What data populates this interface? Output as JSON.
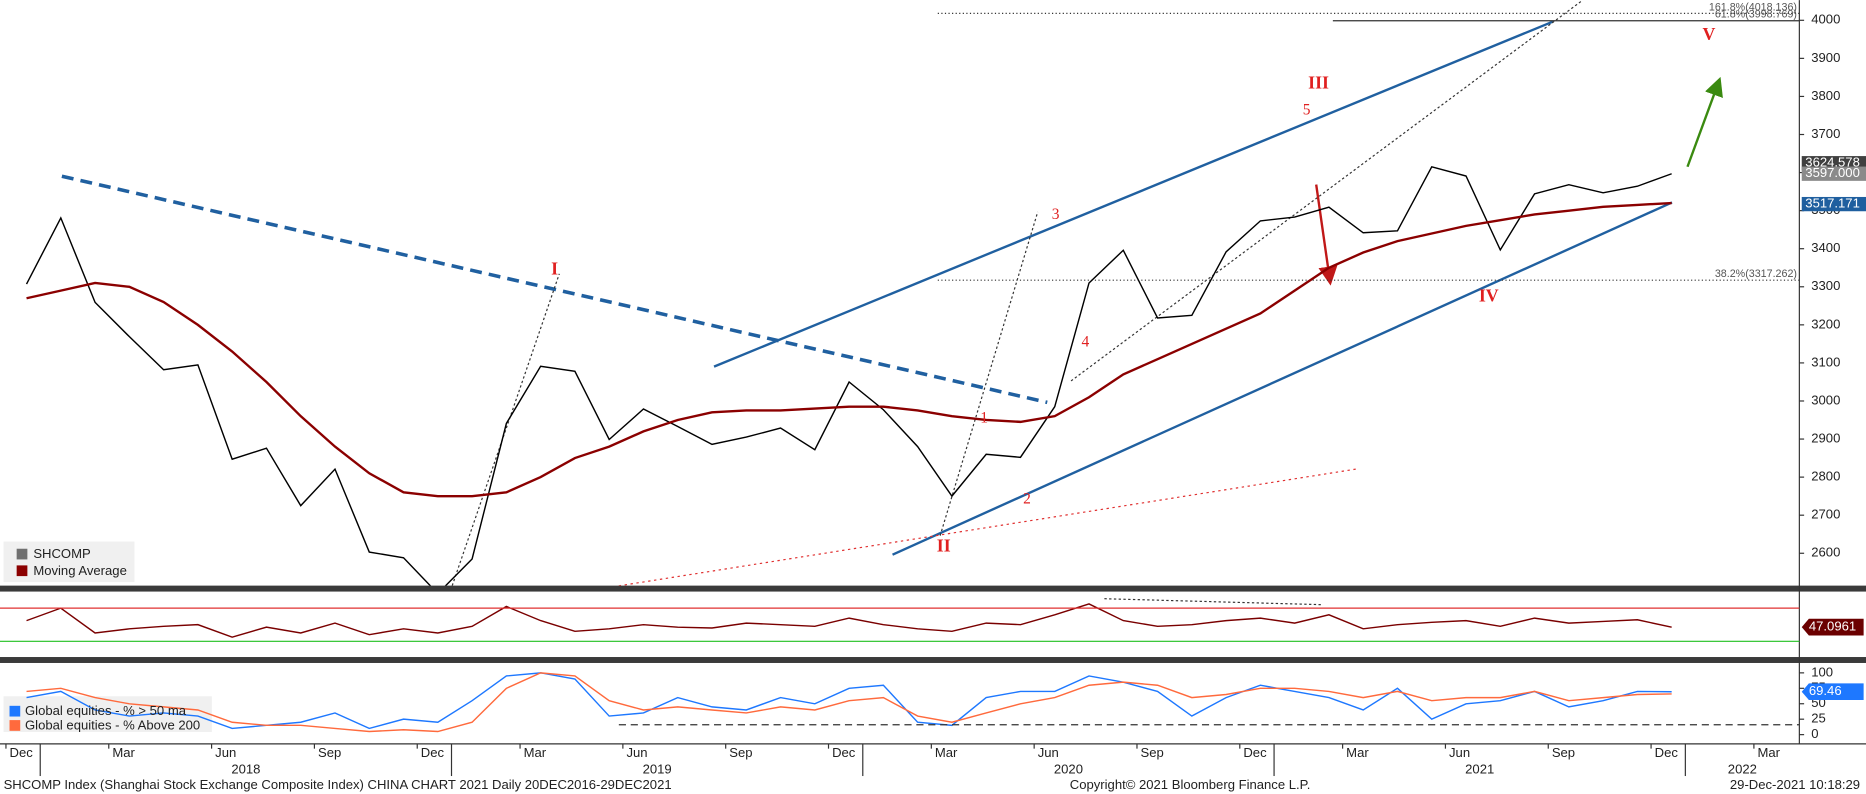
{
  "chart_data": [
    {
      "type": "line",
      "x": [
        "2017-12",
        "2018-01",
        "2018-02",
        "2018-03",
        "2018-04",
        "2018-05",
        "2018-06",
        "2018-07",
        "2018-08",
        "2018-09",
        "2018-10",
        "2018-11",
        "2018-12",
        "2019-01",
        "2019-02",
        "2019-03",
        "2019-04",
        "2019-05",
        "2019-06",
        "2019-07",
        "2019-08",
        "2019-09",
        "2019-10",
        "2019-11",
        "2019-12",
        "2020-01",
        "2020-02",
        "2020-03",
        "2020-04",
        "2020-05",
        "2020-06",
        "2020-07",
        "2020-08",
        "2020-09",
        "2020-10",
        "2020-11",
        "2020-12",
        "2021-01",
        "2021-02",
        "2021-03",
        "2021-04",
        "2021-05",
        "2021-06",
        "2021-07",
        "2021-08",
        "2021-09",
        "2021-10",
        "2021-11",
        "2021-12"
      ],
      "xticks": [
        {
          "value": "2017-12",
          "label": "Dec"
        },
        {
          "value": "2018-03",
          "label": "Mar"
        },
        {
          "value": "2018-06",
          "label": "Jun"
        },
        {
          "value": "2018-09",
          "label": "Sep"
        },
        {
          "value": "2018-12",
          "label": "Dec"
        },
        {
          "value": "2019-03",
          "label": "Mar"
        },
        {
          "value": "2019-06",
          "label": "Jun"
        },
        {
          "value": "2019-09",
          "label": "Sep"
        },
        {
          "value": "2019-12",
          "label": "Dec"
        },
        {
          "value": "2020-03",
          "label": "Mar"
        },
        {
          "value": "2020-06",
          "label": "Jun"
        },
        {
          "value": "2020-09",
          "label": "Sep"
        },
        {
          "value": "2020-12",
          "label": "Dec"
        },
        {
          "value": "2021-03",
          "label": "Mar"
        },
        {
          "value": "2021-06",
          "label": "Jun"
        },
        {
          "value": "2021-09",
          "label": "Sep"
        },
        {
          "value": "2021-12",
          "label": "Dec"
        },
        {
          "value": "2022-03",
          "label": "Mar"
        }
      ],
      "year_labels": [
        "2018",
        "2019",
        "2020",
        "2021",
        "2022"
      ],
      "ylim": [
        2515,
        4053
      ],
      "yticks": [
        2600,
        2700,
        2800,
        2900,
        3000,
        3100,
        3200,
        3300,
        3400,
        3500,
        3600,
        3700,
        3800,
        3900,
        4000
      ],
      "series": [
        {
          "name": "SHCOMP",
          "color": "#000000",
          "values": [
            3307,
            3481,
            3259,
            3169,
            3082,
            3095,
            2847,
            2876,
            2725,
            2821,
            2603,
            2588,
            2494,
            2585,
            2941,
            3091,
            3078,
            2899,
            2979,
            2933,
            2886,
            2905,
            2929,
            2872,
            3050,
            2977,
            2880,
            2750,
            2860,
            2852,
            2985,
            3310,
            3396,
            3218,
            3225,
            3392,
            3473,
            3483,
            3509,
            3442,
            3447,
            3615,
            3591,
            3397,
            3544,
            3568,
            3547,
            3564,
            3597
          ]
        },
        {
          "name": "Moving Average",
          "color": "#8b0000",
          "values": [
            3270,
            3290,
            3310,
            3300,
            3260,
            3200,
            3130,
            3050,
            2960,
            2880,
            2810,
            2760,
            2750,
            2750,
            2760,
            2800,
            2850,
            2880,
            2920,
            2950,
            2970,
            2975,
            2975,
            2980,
            2985,
            2985,
            2975,
            2960,
            2950,
            2945,
            2960,
            3010,
            3070,
            3110,
            3150,
            3190,
            3230,
            3290,
            3350,
            3390,
            3420,
            3440,
            3460,
            3475,
            3490,
            3500,
            3510,
            3515,
            3520
          ]
        }
      ],
      "last_value_labels": [
        {
          "value": 3624.578,
          "label": "3624.578",
          "color": "#404040"
        },
        {
          "value": 3597,
          "label": "3597.000",
          "color": "#8a8a8a"
        },
        {
          "value": 3517.171,
          "label": "3517.171",
          "color": "#1f5f9f"
        }
      ],
      "fib_levels": [
        {
          "value": 4018.136,
          "label": "161.8%(4018.136)"
        },
        {
          "value": 3998.769,
          "label": "61.8%(3998.769)"
        },
        {
          "value": 3317.262,
          "label": "38.2%(3317.262)"
        }
      ],
      "wave_labels": [
        "I",
        "II",
        "III",
        "IV",
        "V"
      ],
      "sub_wave_labels": [
        "1",
        "2",
        "3",
        "4",
        "5"
      ]
    },
    {
      "type": "line",
      "ylim": [
        11,
        90
      ],
      "levels": [
        {
          "value": 70,
          "color": "#e03030"
        },
        {
          "value": 30,
          "color": "#20c020"
        }
      ],
      "series": [
        {
          "color": "#7a0000",
          "values": [
            55,
            70,
            40,
            45,
            48,
            50,
            35,
            47,
            40,
            52,
            38,
            45,
            40,
            48,
            72,
            55,
            42,
            45,
            50,
            47,
            46,
            52,
            50,
            48,
            58,
            50,
            45,
            42,
            52,
            50,
            62,
            75,
            55,
            48,
            50,
            55,
            58,
            52,
            62,
            45,
            50,
            53,
            55,
            48,
            58,
            52,
            54,
            56,
            47.1
          ]
        }
      ],
      "last_value": 47.0961,
      "last_value_color": "#6b0000"
    },
    {
      "type": "line",
      "ylim": [
        -15,
        116
      ],
      "yticks": [
        0,
        25,
        50,
        75,
        100
      ],
      "reference_line": 16,
      "series": [
        {
          "name": "Global equities - % > 50 ma",
          "color": "#1e78ff",
          "values": [
            60,
            70,
            40,
            30,
            35,
            30,
            10,
            15,
            20,
            35,
            10,
            25,
            20,
            55,
            95,
            100,
            90,
            30,
            35,
            60,
            45,
            40,
            60,
            50,
            75,
            80,
            20,
            15,
            60,
            70,
            70,
            95,
            85,
            70,
            30,
            60,
            80,
            70,
            60,
            40,
            75,
            25,
            50,
            55,
            70,
            45,
            55,
            70,
            69.46
          ]
        },
        {
          "name": "Global equities - % Above 200",
          "color": "#ff6a3d",
          "values": [
            70,
            75,
            60,
            50,
            45,
            40,
            20,
            15,
            15,
            10,
            5,
            8,
            5,
            20,
            75,
            100,
            95,
            55,
            40,
            45,
            40,
            35,
            45,
            40,
            55,
            60,
            30,
            20,
            35,
            50,
            60,
            80,
            85,
            80,
            60,
            65,
            75,
            75,
            70,
            60,
            70,
            55,
            60,
            60,
            70,
            55,
            60,
            65,
            66
          ]
        }
      ],
      "last_value": 69.46,
      "last_value_color": "#1e78ff"
    }
  ],
  "footer": {
    "left": "SHCOMP Index (Shanghai Stock Exchange Composite Index) CHINA CHART 2021  Daily 20DEC2016-29DEC2021",
    "center": "Copyright© 2021 Bloomberg Finance L.P.",
    "right": "29-Dec-2021 10:18:29"
  }
}
